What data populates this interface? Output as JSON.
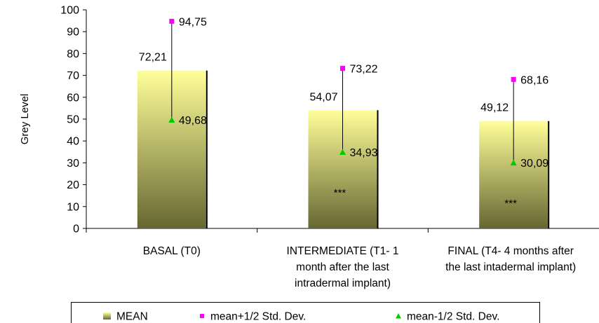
{
  "chart_data": {
    "type": "bar",
    "ylabel": "Grey Level",
    "ylim": [
      0,
      100
    ],
    "yticks": [
      0,
      10,
      20,
      30,
      40,
      50,
      60,
      70,
      80,
      90,
      100
    ],
    "categories": [
      [
        "BASAL (T0)"
      ],
      [
        "INTERMEDIATE  (T1- 1",
        "month after the last",
        "intradermal implant)"
      ],
      [
        "FINAL (T4- 4 months after",
        "the last intadermal implant)"
      ]
    ],
    "series": [
      {
        "name": "MEAN",
        "marker": "bar",
        "values": [
          72.21,
          54.07,
          49.12
        ],
        "labels": [
          "72,21",
          "54,07",
          "49,12"
        ]
      },
      {
        "name": "mean+1/2 Std. Dev.",
        "marker": "square",
        "color": "#ff00ff",
        "values": [
          94.75,
          73.22,
          68.16
        ],
        "labels": [
          "94,75",
          "73,22",
          "68,16"
        ]
      },
      {
        "name": "mean-1/2 Std. Dev.",
        "marker": "triangle",
        "color": "#00cc00",
        "values": [
          49.68,
          34.93,
          30.09
        ],
        "labels": [
          "49,68",
          "34,93",
          "30,09"
        ]
      }
    ],
    "significance": [
      "",
      "***",
      "***"
    ],
    "bar_gradient": {
      "top": "#ffff99",
      "bottom": "#666633"
    },
    "grid": false,
    "legend": "bottom"
  }
}
